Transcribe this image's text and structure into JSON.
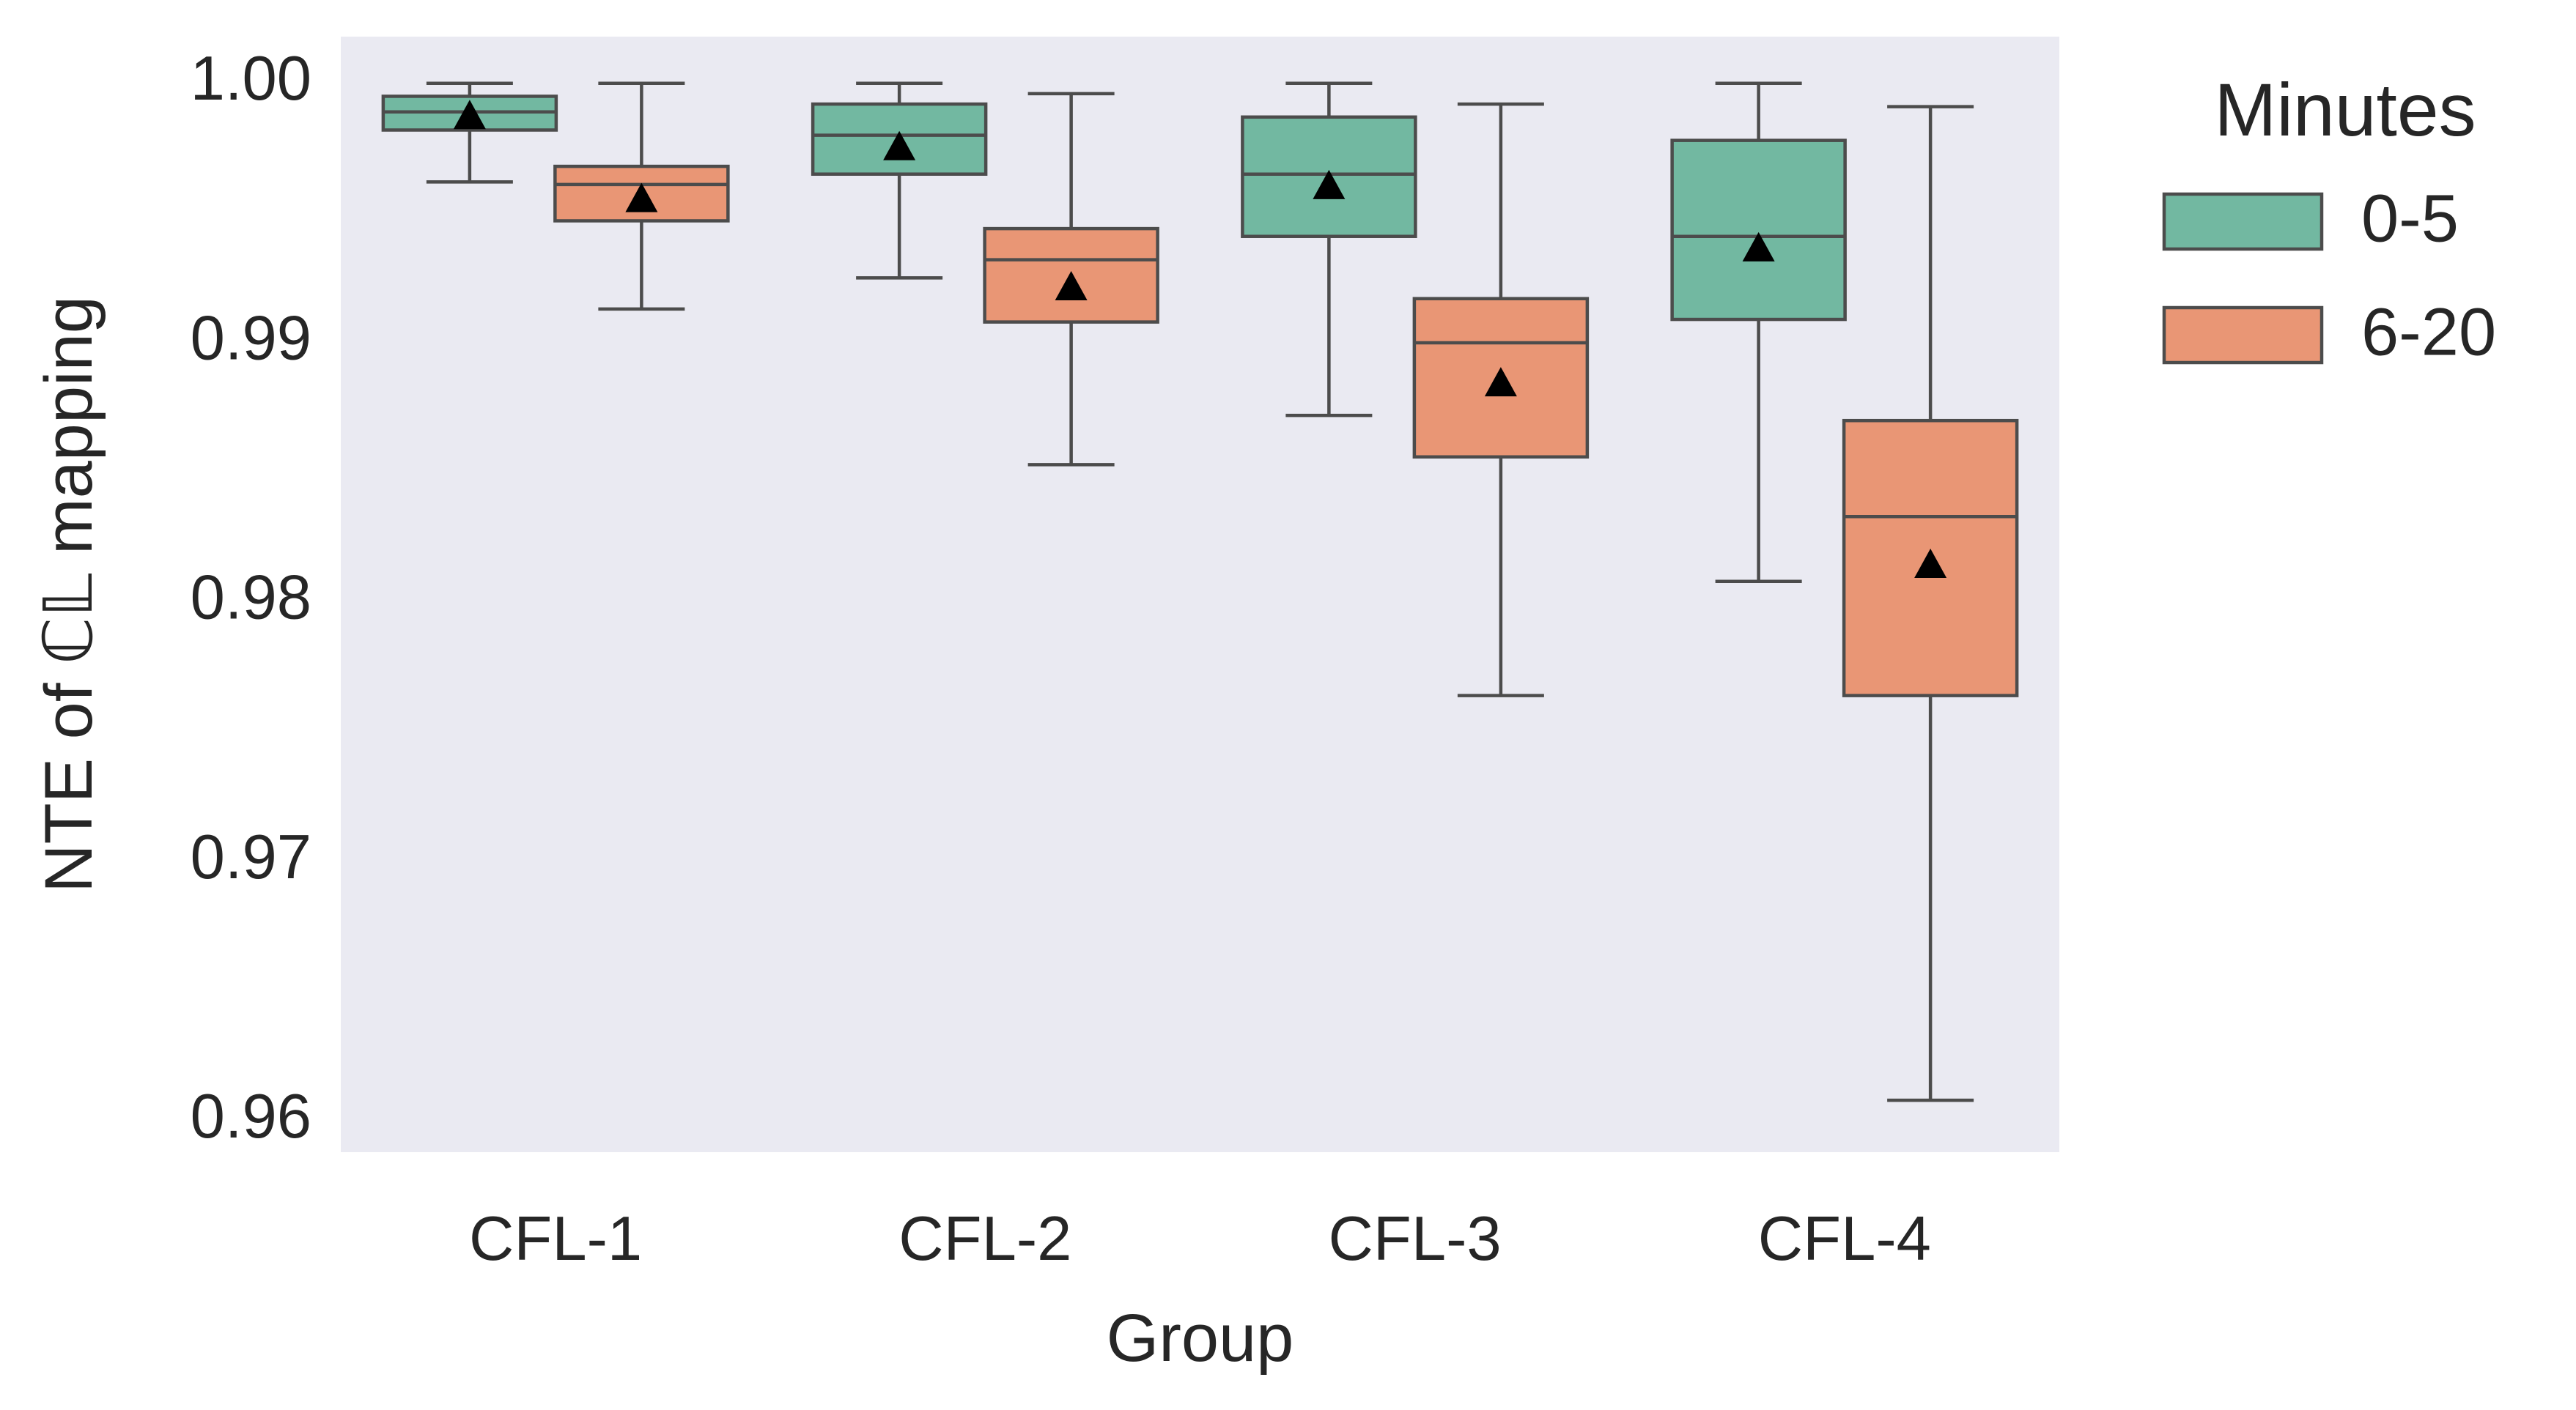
{
  "chart_data": {
    "type": "box",
    "xlabel": "Group",
    "ylabel": "NTE of ℂ𝕃 mapping",
    "ylim": [
      0.9588,
      1.0018
    ],
    "yticks": [
      0.96,
      0.97,
      0.98,
      0.99,
      1.0
    ],
    "ytick_labels": [
      "0.96",
      "0.97",
      "0.98",
      "0.99",
      "1.00"
    ],
    "grid": false,
    "background": "#eaeaf2",
    "categories": [
      "CFL-1",
      "CFL-2",
      "CFL-3",
      "CFL-4"
    ],
    "legend": {
      "title": "Minutes",
      "position": "outside-right-top"
    },
    "series": [
      {
        "name": "0-5",
        "color": "#72b8a1",
        "boxes": [
          {
            "whisker_low": 0.9962,
            "q1": 0.9982,
            "median": 0.9989,
            "q3": 0.9995,
            "whisker_high": 1.0,
            "mean": 0.9988
          },
          {
            "whisker_low": 0.9925,
            "q1": 0.9965,
            "median": 0.998,
            "q3": 0.9992,
            "whisker_high": 1.0,
            "mean": 0.9976
          },
          {
            "whisker_low": 0.9872,
            "q1": 0.9941,
            "median": 0.9965,
            "q3": 0.9987,
            "whisker_high": 1.0,
            "mean": 0.9961
          },
          {
            "whisker_low": 0.9808,
            "q1": 0.9909,
            "median": 0.9941,
            "q3": 0.9978,
            "whisker_high": 1.0,
            "mean": 0.9937
          }
        ]
      },
      {
        "name": "6-20",
        "color": "#e99675",
        "boxes": [
          {
            "whisker_low": 0.9913,
            "q1": 0.9947,
            "median": 0.9961,
            "q3": 0.9968,
            "whisker_high": 1.0,
            "mean": 0.9956
          },
          {
            "whisker_low": 0.9853,
            "q1": 0.9908,
            "median": 0.9932,
            "q3": 0.9944,
            "whisker_high": 0.9996,
            "mean": 0.9922
          },
          {
            "whisker_low": 0.9764,
            "q1": 0.9856,
            "median": 0.99,
            "q3": 0.9917,
            "whisker_high": 0.9992,
            "mean": 0.9885
          },
          {
            "whisker_low": 0.9608,
            "q1": 0.9764,
            "median": 0.9833,
            "q3": 0.987,
            "whisker_high": 0.9991,
            "mean": 0.9815
          }
        ]
      }
    ]
  }
}
